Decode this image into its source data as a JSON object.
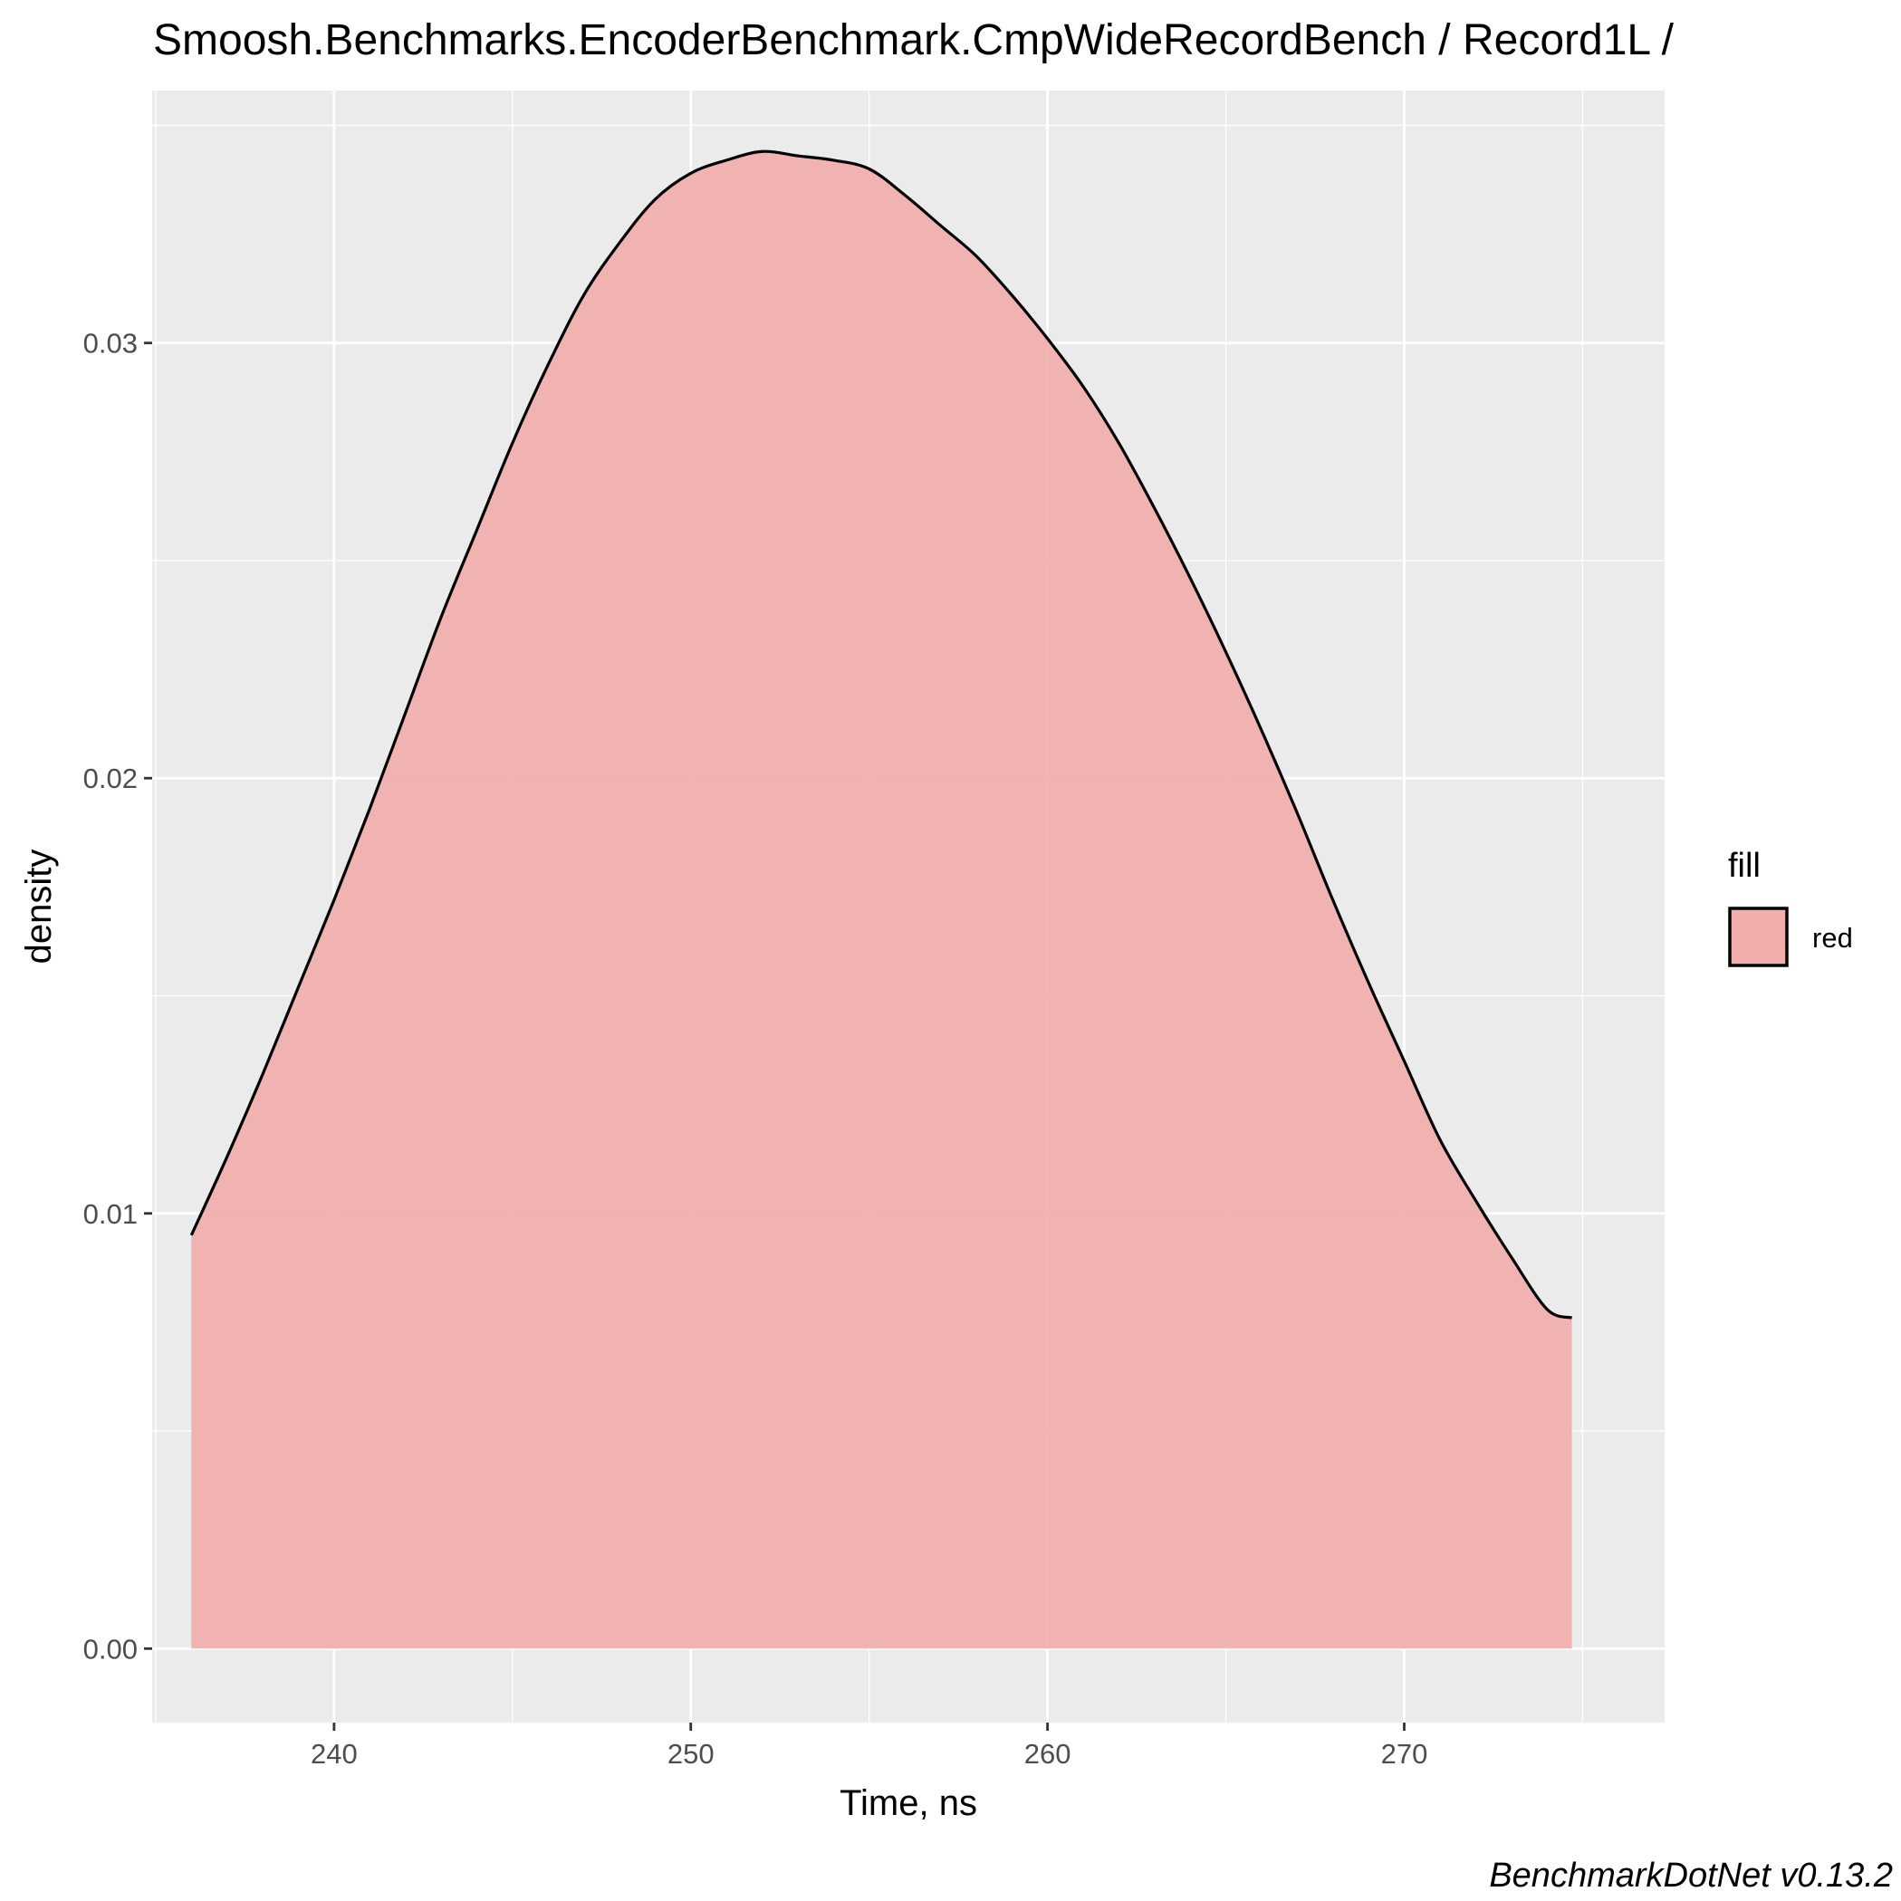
{
  "chart_data": {
    "type": "area",
    "title": "Smoosh.Benchmarks.EncoderBenchmark.CmpWideRecordBench / Record1L /",
    "xlabel": "Time, ns",
    "ylabel": "density",
    "caption": "BenchmarkDotNet v0.13.2",
    "xlim": [
      234.9,
      277.3
    ],
    "ylim": [
      -0.0017,
      0.0358
    ],
    "x_ticks": [
      240,
      250,
      260,
      270
    ],
    "x_tick_labels": [
      "240",
      "250",
      "260",
      "270"
    ],
    "y_ticks": [
      0.0,
      0.01,
      0.02,
      0.03
    ],
    "y_tick_labels": [
      "0.00",
      "0.01",
      "0.02",
      "0.03"
    ],
    "grid": true,
    "legend": {
      "title": "fill",
      "placement": "right",
      "entries": [
        {
          "label": "red",
          "color": "#f1aeac"
        }
      ]
    },
    "series": [
      {
        "name": "red",
        "x": [
          236.0,
          237.0,
          238.0,
          239.0,
          240.0,
          241.0,
          242.0,
          243.0,
          244.0,
          245.0,
          246.0,
          247.0,
          248.0,
          249.0,
          250.0,
          251.0,
          252.0,
          253.0,
          254.0,
          255.0,
          256.0,
          257.0,
          258.0,
          259.0,
          260.0,
          261.0,
          262.0,
          263.0,
          264.0,
          265.0,
          266.0,
          267.0,
          268.0,
          269.0,
          270.0,
          271.0,
          272.0,
          273.0,
          274.0,
          274.7
        ],
        "y": [
          0.0095,
          0.0113,
          0.0132,
          0.0152,
          0.0172,
          0.0193,
          0.0215,
          0.0237,
          0.0257,
          0.0277,
          0.0295,
          0.0311,
          0.0323,
          0.0333,
          0.0339,
          0.0342,
          0.0344,
          0.0343,
          0.0342,
          0.034,
          0.0334,
          0.0327,
          0.032,
          0.0311,
          0.0301,
          0.029,
          0.0277,
          0.0262,
          0.0246,
          0.0229,
          0.0211,
          0.0192,
          0.0172,
          0.0153,
          0.0135,
          0.0117,
          0.0103,
          0.009,
          0.0078,
          0.0076
        ]
      }
    ]
  },
  "colors": {
    "panel_background": "#ebebeb",
    "grid_major": "#ffffff",
    "fill": "#f1aeac",
    "line": "#000000"
  }
}
